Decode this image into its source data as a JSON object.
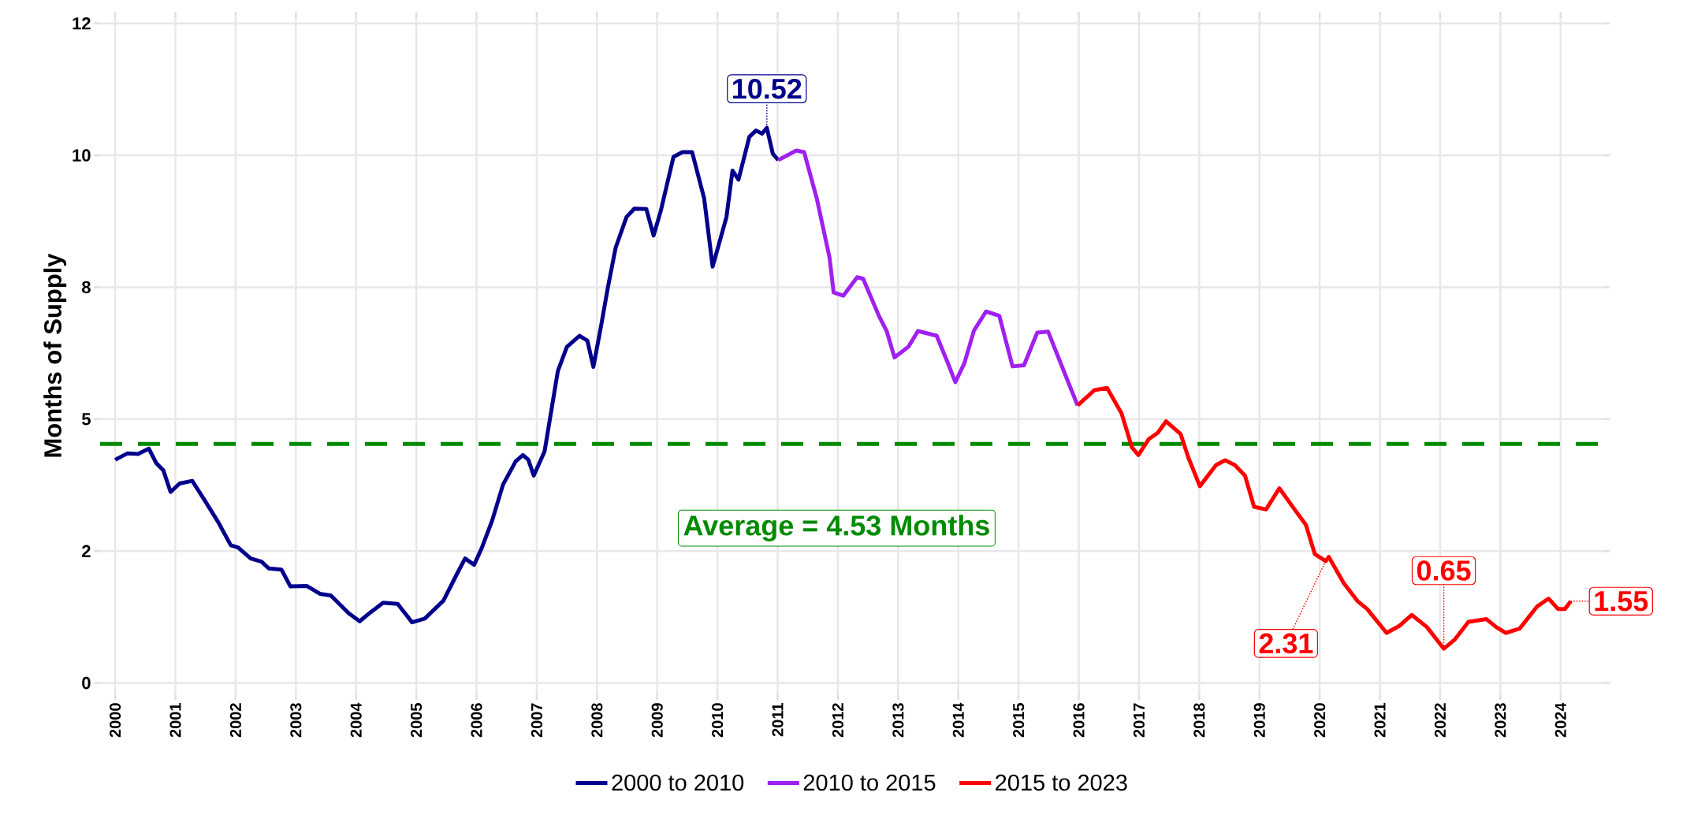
{
  "chart_data": {
    "type": "line",
    "ylabel": "Months of Supply",
    "xlim": [
      1999.75,
      2024.71
    ],
    "ylim": [
      -0.2,
      12.6
    ],
    "xticks": [
      2000,
      2001,
      2002,
      2003,
      2004,
      2005,
      2006,
      2007,
      2008,
      2009,
      2010,
      2011,
      2012,
      2013,
      2014,
      2015,
      2016,
      2017,
      2018,
      2019,
      2020,
      2021,
      2022,
      2023,
      2024
    ],
    "yticks": [
      0,
      {
        "value": 2.5,
        "label": "2"
      },
      5,
      {
        "value": 7.5,
        "label": "8"
      },
      10,
      {
        "value": 12.5,
        "label": "12"
      }
    ],
    "grid": true,
    "legend": "bottom",
    "marker": "none",
    "line_style": "solid",
    "series": [
      {
        "name": "2000 to 2010",
        "color": "#00008b",
        "x": [
          2000.0,
          2000.2,
          2000.38,
          2000.56,
          2000.68,
          2000.8,
          2000.92,
          2001.07,
          2001.28,
          2001.47,
          2001.71,
          2001.92,
          2002.04,
          2002.25,
          2002.43,
          2002.55,
          2002.76,
          2002.91,
          2003.18,
          2003.4,
          2003.58,
          2003.88,
          2004.06,
          2004.24,
          2004.45,
          2004.69,
          2004.93,
          2005.14,
          2005.45,
          2005.69,
          2005.81,
          2005.96,
          2006.08,
          2006.26,
          2006.44,
          2006.65,
          2006.77,
          2006.86,
          2006.95,
          2007.13,
          2007.35,
          2007.5,
          2007.71,
          2007.84,
          2007.94,
          2008.07,
          2008.18,
          2008.31,
          2008.49,
          2008.62,
          2008.82,
          2008.94,
          2009.06,
          2009.27,
          2009.42,
          2009.58,
          2009.78,
          2009.92,
          2010.15,
          2010.25,
          2010.35,
          2010.53,
          2010.64,
          2010.74,
          2010.82,
          2010.92,
          2011.01
        ],
        "values": [
          4.23,
          4.35,
          4.34,
          4.44,
          4.17,
          4.03,
          3.62,
          3.78,
          3.83,
          3.49,
          3.05,
          2.61,
          2.57,
          2.36,
          2.3,
          2.17,
          2.15,
          1.83,
          1.84,
          1.69,
          1.66,
          1.32,
          1.17,
          1.34,
          1.52,
          1.5,
          1.15,
          1.22,
          1.56,
          2.1,
          2.36,
          2.24,
          2.54,
          3.08,
          3.76,
          4.2,
          4.32,
          4.23,
          3.93,
          4.39,
          5.91,
          6.37,
          6.58,
          6.49,
          5.99,
          6.78,
          7.49,
          8.25,
          8.83,
          8.99,
          8.98,
          8.48,
          8.95,
          9.97,
          10.06,
          10.06,
          9.18,
          7.89,
          8.83,
          9.71,
          9.54,
          10.35,
          10.47,
          10.41,
          10.52,
          10.03,
          9.91
        ]
      },
      {
        "name": "2010 to 2015",
        "color": "#a020f0",
        "x": [
          2011.01,
          2011.31,
          2011.44,
          2011.65,
          2011.86,
          2011.93,
          2012.09,
          2012.32,
          2012.42,
          2012.68,
          2012.81,
          2012.94,
          2013.17,
          2013.33,
          2013.64,
          2013.82,
          2013.95,
          2014.1,
          2014.26,
          2014.46,
          2014.68,
          2014.9,
          2015.09,
          2015.31,
          2015.49,
          2015.79,
          2015.98
        ],
        "values": [
          9.91,
          10.09,
          10.06,
          9.18,
          8.07,
          7.4,
          7.34,
          7.69,
          7.66,
          6.96,
          6.67,
          6.17,
          6.37,
          6.67,
          6.58,
          6.08,
          5.7,
          6.06,
          6.68,
          7.04,
          6.96,
          6.0,
          6.02,
          6.64,
          6.66,
          5.8,
          5.26
        ]
      },
      {
        "name": "2015 to 2023",
        "color": "#ff0000",
        "x": [
          2015.98,
          2016.26,
          2016.47,
          2016.71,
          2016.88,
          2016.99,
          2017.16,
          2017.31,
          2017.45,
          2017.69,
          2017.82,
          2018.01,
          2018.28,
          2018.43,
          2018.59,
          2018.76,
          2018.91,
          2019.11,
          2019.33,
          2019.64,
          2019.77,
          2019.92,
          2020.1,
          2020.15,
          2020.4,
          2020.63,
          2020.79,
          2021.11,
          2021.32,
          2021.53,
          2021.78,
          2022.06,
          2022.24,
          2022.47,
          2022.77,
          2022.93,
          2023.09,
          2023.32,
          2023.61,
          2023.8,
          2023.96,
          2024.07,
          2024.17
        ],
        "values": [
          5.26,
          5.55,
          5.59,
          5.11,
          4.47,
          4.32,
          4.62,
          4.74,
          4.96,
          4.72,
          4.27,
          3.73,
          4.13,
          4.22,
          4.13,
          3.93,
          3.34,
          3.29,
          3.69,
          3.2,
          3.0,
          2.44,
          2.31,
          2.39,
          1.89,
          1.55,
          1.4,
          0.95,
          1.08,
          1.29,
          1.06,
          0.65,
          0.82,
          1.16,
          1.21,
          1.06,
          0.95,
          1.03,
          1.45,
          1.6,
          1.4,
          1.4,
          1.55
        ]
      }
    ],
    "ref_lines": [
      {
        "axis": "y",
        "value": 4.53,
        "label": "Average = 4.53 Months",
        "color": "#008b00",
        "line_style": "dashed"
      }
    ],
    "annotations": [
      {
        "text": "10.52",
        "x": 2010.82,
        "y": 10.52
      },
      {
        "text": "2.31",
        "x": 2020.1,
        "y": 2.31
      },
      {
        "text": "0.65",
        "x": 2022.06,
        "y": 0.65
      },
      {
        "text": "1.55",
        "x": 2024.17,
        "y": 1.55
      }
    ]
  }
}
